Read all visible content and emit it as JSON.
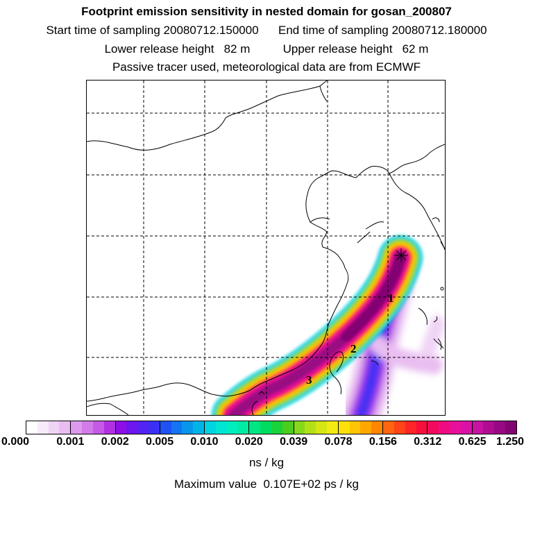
{
  "header": {
    "title": "Footprint emission sensitivity in nested domain for gosan_200807",
    "sampling_line": "Start time of sampling 20080712.150000      End time of sampling 20080712.180000",
    "release_line": "Lower release height   82 m          Upper release height   62 m",
    "tracer_line": "Passive tracer used, meteorological data are from ECMWF"
  },
  "map": {
    "labels": [
      "1",
      "2",
      "3"
    ]
  },
  "colorbar": {
    "ticks": [
      "0.000",
      "0.001",
      "0.002",
      "0.005",
      "0.010",
      "0.020",
      "0.039",
      "0.078",
      "0.156",
      "0.312",
      "0.625",
      "1.250"
    ],
    "colors": [
      [
        "#ffffff",
        "#f8eafb",
        "#f0d4f6",
        "#e9bdf1"
      ],
      [
        "#dd99ee",
        "#d37ce9",
        "#c45ae6",
        "#b230e4"
      ],
      [
        "#8e0ee6",
        "#6d16ee",
        "#5422f2",
        "#3a30f4"
      ],
      [
        "#1e52f4",
        "#1474f2",
        "#0896ec",
        "#00b4e8"
      ],
      [
        "#00d4e0",
        "#00e6d2",
        "#00eebe",
        "#00eca2"
      ],
      [
        "#00e684",
        "#00dc60",
        "#1ad23a",
        "#4ccc1c"
      ],
      [
        "#86d81a",
        "#b2e016",
        "#d6e614",
        "#f2ea10"
      ],
      [
        "#ffe00a",
        "#ffc404",
        "#ffa600",
        "#ff8600"
      ],
      [
        "#ff6410",
        "#ff4418",
        "#ff2428",
        "#f80e3c"
      ],
      [
        "#f40a5c",
        "#f00c80",
        "#e8109a",
        "#da12a8"
      ],
      [
        "#c812a2",
        "#b00c92",
        "#980882",
        "#820672"
      ]
    ],
    "units": "ns / kg"
  },
  "footer": {
    "max_value": "Maximum value  0.107E+02 ps / kg"
  }
}
